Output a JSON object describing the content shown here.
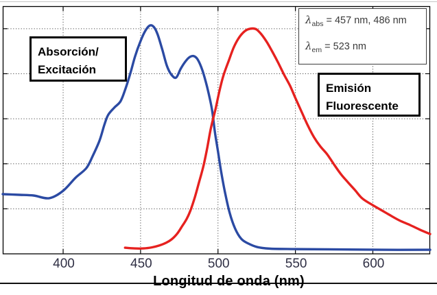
{
  "annotations": {
    "absorption_label": {
      "line1": "Absorción/",
      "line2": "Excitación"
    },
    "emission_label": {
      "line1": "Emisión",
      "line2": "Fluorescente"
    },
    "legend": {
      "line1": {
        "symbol": "λ",
        "sub": "abs",
        "value": " = 457 nm, 486 nm"
      },
      "line2": {
        "symbol": "λ",
        "sub": "em",
        "value": " = 523 nm"
      }
    },
    "xaxis_title": "Longitud de onda (nm)"
  },
  "colors": {
    "absorption_curve": "#2b4aa3",
    "emission_curve": "#e6211f",
    "grid": "#4a4a4a",
    "axis": "#000000",
    "tick_label": "#2f2f44"
  },
  "chart_data": {
    "type": "line",
    "title": "",
    "xlabel": "Longitud de onda (nm)",
    "ylabel": "",
    "xlim": [
      361,
      637
    ],
    "ylim": [
      0,
      1.1
    ],
    "x_ticks": [
      400,
      450,
      500,
      550,
      600
    ],
    "y_gridlines": [
      0.2,
      0.4,
      0.6,
      0.8,
      1.0
    ],
    "grid": true,
    "legend_position": "top-right",
    "peaks": {
      "lambda_abs_nm": [
        457,
        486
      ],
      "lambda_em_nm": 523
    },
    "series": [
      {
        "name": "Absorción/Excitación",
        "color_key": "absorption_curve",
        "points": [
          [
            361,
            0.265
          ],
          [
            372,
            0.262
          ],
          [
            381,
            0.259
          ],
          [
            391,
            0.247
          ],
          [
            400,
            0.28
          ],
          [
            408,
            0.338
          ],
          [
            415,
            0.381
          ],
          [
            419,
            0.433
          ],
          [
            423.5,
            0.503
          ],
          [
            426.5,
            0.57
          ],
          [
            429,
            0.616
          ],
          [
            433,
            0.649
          ],
          [
            437,
            0.677
          ],
          [
            440,
            0.728
          ],
          [
            443.5,
            0.804
          ],
          [
            446.5,
            0.878
          ],
          [
            450,
            0.945
          ],
          [
            453,
            0.99
          ],
          [
            456,
            1.014
          ],
          [
            458.5,
            1.008
          ],
          [
            461,
            0.975
          ],
          [
            464,
            0.908
          ],
          [
            467,
            0.835
          ],
          [
            470,
            0.795
          ],
          [
            473,
            0.783
          ],
          [
            476,
            0.823
          ],
          [
            479.5,
            0.859
          ],
          [
            482,
            0.875
          ],
          [
            484.5,
            0.878
          ],
          [
            487,
            0.862
          ],
          [
            490,
            0.814
          ],
          [
            493,
            0.74
          ],
          [
            496,
            0.646
          ],
          [
            498,
            0.542
          ],
          [
            500,
            0.454
          ],
          [
            502,
            0.366
          ],
          [
            504.5,
            0.274
          ],
          [
            507.5,
            0.183
          ],
          [
            511,
            0.113
          ],
          [
            515,
            0.067
          ],
          [
            519.5,
            0.046
          ],
          [
            525.5,
            0.03
          ],
          [
            534,
            0.023
          ],
          [
            550,
            0.021
          ],
          [
            572,
            0.02
          ],
          [
            607,
            0.018
          ],
          [
            637,
            0.018
          ]
        ]
      },
      {
        "name": "Emisión Fluorescente",
        "color_key": "emission_curve",
        "points": [
          [
            440,
            0.027
          ],
          [
            446,
            0.024
          ],
          [
            452,
            0.024
          ],
          [
            457.5,
            0.029
          ],
          [
            462,
            0.037
          ],
          [
            466.5,
            0.049
          ],
          [
            470,
            0.064
          ],
          [
            473.5,
            0.088
          ],
          [
            476.5,
            0.119
          ],
          [
            480,
            0.158
          ],
          [
            482.5,
            0.198
          ],
          [
            485,
            0.25
          ],
          [
            487.5,
            0.311
          ],
          [
            490.5,
            0.387
          ],
          [
            493,
            0.469
          ],
          [
            495.5,
            0.561
          ],
          [
            498.5,
            0.646
          ],
          [
            501,
            0.725
          ],
          [
            503.5,
            0.792
          ],
          [
            507,
            0.859
          ],
          [
            510,
            0.914
          ],
          [
            513,
            0.954
          ],
          [
            516,
            0.981
          ],
          [
            519,
            0.996
          ],
          [
            522.5,
            1.001
          ],
          [
            525,
            0.996
          ],
          [
            528,
            0.975
          ],
          [
            531.5,
            0.941
          ],
          [
            535,
            0.899
          ],
          [
            539,
            0.847
          ],
          [
            542.5,
            0.798
          ],
          [
            546.5,
            0.747
          ],
          [
            550,
            0.692
          ],
          [
            554,
            0.631
          ],
          [
            558,
            0.57
          ],
          [
            562,
            0.518
          ],
          [
            566,
            0.478
          ],
          [
            570.5,
            0.442
          ],
          [
            575,
            0.396
          ],
          [
            579.5,
            0.353
          ],
          [
            584,
            0.317
          ],
          [
            588.5,
            0.283
          ],
          [
            593,
            0.247
          ],
          [
            598.5,
            0.222
          ],
          [
            604.5,
            0.198
          ],
          [
            610.5,
            0.174
          ],
          [
            617,
            0.149
          ],
          [
            624,
            0.128
          ],
          [
            630.5,
            0.107
          ],
          [
            637,
            0.088
          ]
        ]
      }
    ]
  }
}
